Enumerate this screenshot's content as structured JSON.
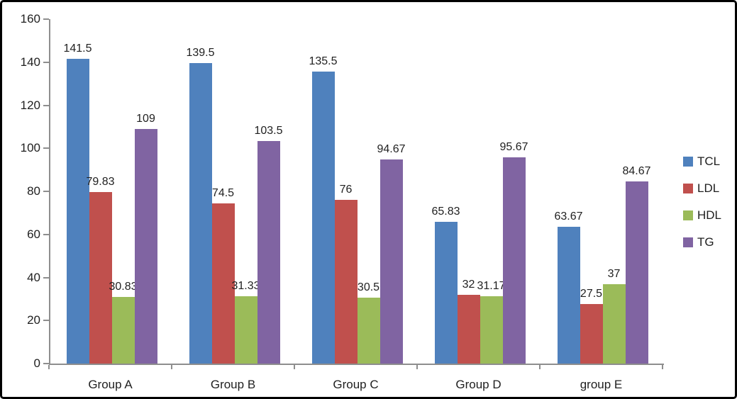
{
  "chart_data": {
    "type": "bar",
    "title": "",
    "xlabel": "",
    "ylabel": "",
    "categories": [
      "Group A",
      "Group B",
      "Group C",
      "Group D",
      "group E"
    ],
    "series": [
      {
        "name": "TCL",
        "color": "#4F81BD",
        "values": [
          141.5,
          139.5,
          135.5,
          65.83,
          63.67
        ]
      },
      {
        "name": "LDL",
        "color": "#C0504D",
        "values": [
          79.83,
          74.5,
          76,
          32,
          27.5
        ]
      },
      {
        "name": "HDL",
        "color": "#9BBB59",
        "values": [
          30.83,
          31.33,
          30.5,
          31.17,
          37
        ]
      },
      {
        "name": "TG",
        "color": "#8064A2",
        "values": [
          109,
          103.5,
          94.67,
          95.67,
          84.67
        ]
      }
    ],
    "data_labels": [
      [
        "141.5",
        "139.5",
        "135.5",
        "65.83",
        "63.67"
      ],
      [
        "79.83",
        "74.5",
        "76",
        "32",
        "27.5"
      ],
      [
        "30.83",
        "31.33",
        "30.5",
        "31.17",
        "37"
      ],
      [
        "109",
        "103.5",
        "94.67",
        "95.67",
        "84.67"
      ]
    ],
    "ylim": [
      0,
      160
    ],
    "yticks": [
      0,
      20,
      40,
      60,
      80,
      100,
      120,
      140,
      160
    ],
    "grid": false,
    "legend_position": "right",
    "axis_color": "#8E8E8E",
    "text_color": "#1F1F1F",
    "background_color": "#FFFFFF",
    "border_color": "#000000"
  }
}
